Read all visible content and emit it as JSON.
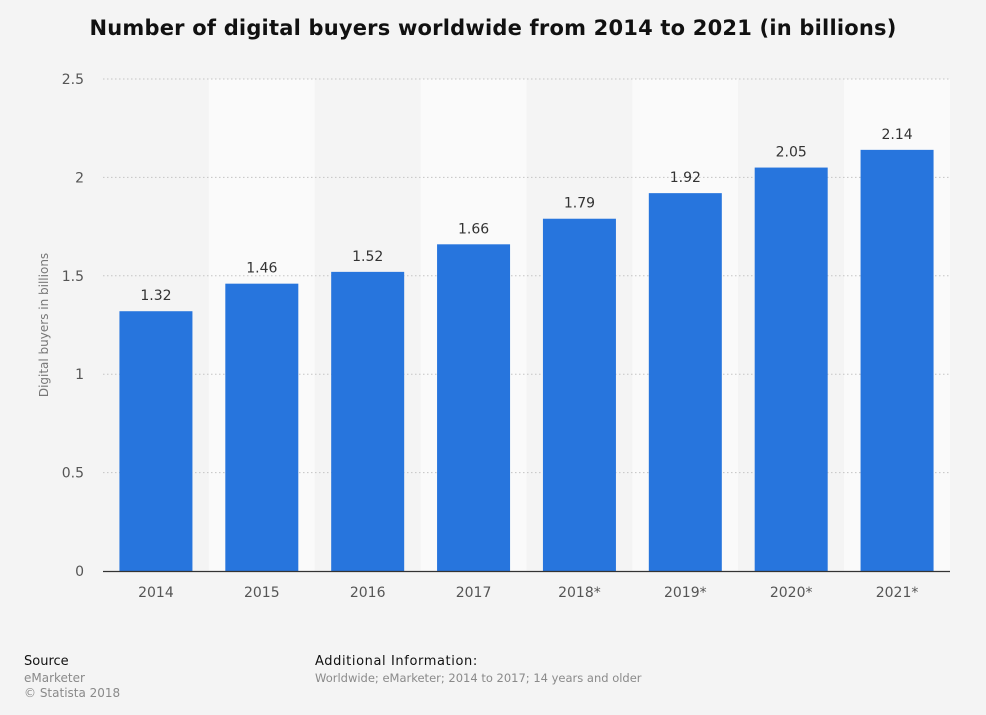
{
  "chart_data": {
    "type": "bar",
    "title": "Number of digital buyers worldwide from 2014 to 2021 (in billions)",
    "xlabel": "",
    "ylabel": "Digital buyers in billions",
    "categories": [
      "2014",
      "2015",
      "2016",
      "2017",
      "2018*",
      "2019*",
      "2020*",
      "2021*"
    ],
    "values": [
      1.32,
      1.46,
      1.52,
      1.66,
      1.79,
      1.92,
      2.05,
      2.14
    ],
    "data_labels": [
      "1.32",
      "1.46",
      "1.52",
      "1.66",
      "1.79",
      "1.92",
      "2.05",
      "2.14"
    ],
    "ylim": [
      0,
      2.5
    ],
    "yticks": [
      0,
      0.5,
      1,
      1.5,
      2,
      2.5
    ],
    "ytick_labels": [
      "0",
      "0.5",
      "1",
      "1.5",
      "2",
      "2.5"
    ],
    "grid": true,
    "legend": "none",
    "bar_color": "#2775dd",
    "band_colors": [
      "#f4f4f4",
      "#fafafa"
    ]
  },
  "footer": {
    "source_heading": "Source",
    "source_line1": "eMarketer",
    "source_line2": "© Statista 2018",
    "info_heading": "Additional Information:",
    "info_text": "Worldwide; eMarketer; 2014 to 2017; 14 years and older"
  }
}
